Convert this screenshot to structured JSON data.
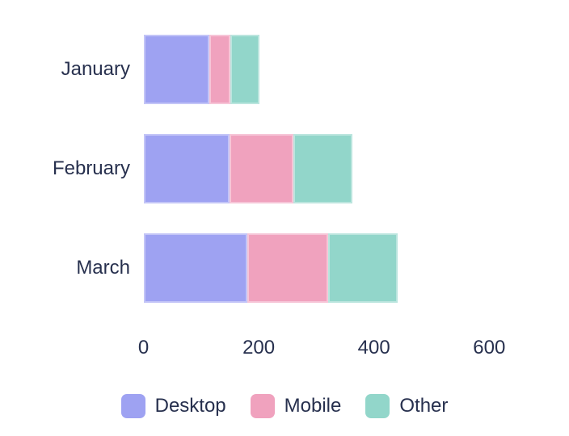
{
  "chart_data": {
    "type": "bar",
    "orientation": "horizontal",
    "stacked": true,
    "title": "",
    "xlabel": "",
    "ylabel": "",
    "categories": [
      "January",
      "February",
      "March"
    ],
    "series": [
      {
        "name": "Desktop",
        "color": "#9EA2F2",
        "values": [
          114,
          149,
          180
        ]
      },
      {
        "name": "Mobile",
        "color": "#F0A2BE",
        "values": [
          37,
          111,
          140
        ]
      },
      {
        "name": "Other",
        "color": "#92D6CA",
        "values": [
          50,
          103,
          121
        ]
      }
    ],
    "x_ticks": [
      0,
      200,
      400,
      600
    ],
    "xlim": [
      0,
      600
    ],
    "grid": false,
    "legend_position": "bottom",
    "text_color": "#27304E",
    "background_color": "#FFFFFF"
  }
}
